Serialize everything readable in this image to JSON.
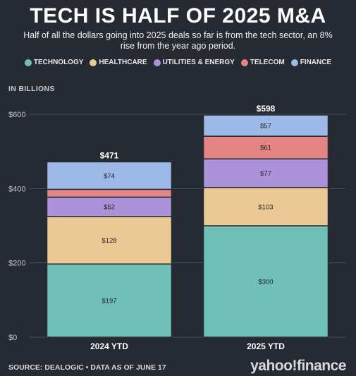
{
  "title": "TECH IS HALF OF 2025 M&A",
  "subtitle": "Half of all the dollars going into 2025 deals so far is from the tech sector, an 8% rise from the year ago period.",
  "unit_label": "IN BILLIONS",
  "footer": "SOURCE: DEALOGIC • DATA AS OF JUNE 17",
  "logo": {
    "left": "yahoo",
    "bang": "!",
    "right": "finance"
  },
  "legend": [
    {
      "label": "TECHNOLOGY",
      "color": "#6ec0b8"
    },
    {
      "label": "HEALTHCARE",
      "color": "#ebc994"
    },
    {
      "label": "UTILITIES & ENERGY",
      "color": "#ac92d8"
    },
    {
      "label": "TELECOM",
      "color": "#e38585"
    },
    {
      "label": "FINANCE",
      "color": "#9db9e8"
    }
  ],
  "chart_data": {
    "type": "bar",
    "stacked": true,
    "categories": [
      "2024 YTD",
      "2025 YTD"
    ],
    "totals_labels": [
      "$471",
      "$598"
    ],
    "series": [
      {
        "name": "TECHNOLOGY",
        "color": "#6ec0b8",
        "values": [
          197,
          300
        ],
        "labels": [
          "$197",
          "$300"
        ]
      },
      {
        "name": "HEALTHCARE",
        "color": "#ebc994",
        "values": [
          128,
          103
        ],
        "labels": [
          "$128",
          "$103"
        ]
      },
      {
        "name": "UTILITIES & ENERGY",
        "color": "#ac92d8",
        "values": [
          52,
          77
        ],
        "labels": [
          "$52",
          "$77"
        ]
      },
      {
        "name": "TELECOM",
        "color": "#e38585",
        "values": [
          21,
          61
        ],
        "labels": [
          "",
          "$61"
        ]
      },
      {
        "name": "FINANCE",
        "color": "#9db9e8",
        "values": [
          74,
          57
        ],
        "labels": [
          "$74",
          "$57"
        ]
      }
    ],
    "yticks": [
      0,
      200,
      400,
      600
    ],
    "ytick_labels": [
      "$0",
      "$200",
      "$400",
      "$600"
    ],
    "ylim": [
      0,
      600
    ],
    "grid": true,
    "legend_position": "top"
  }
}
